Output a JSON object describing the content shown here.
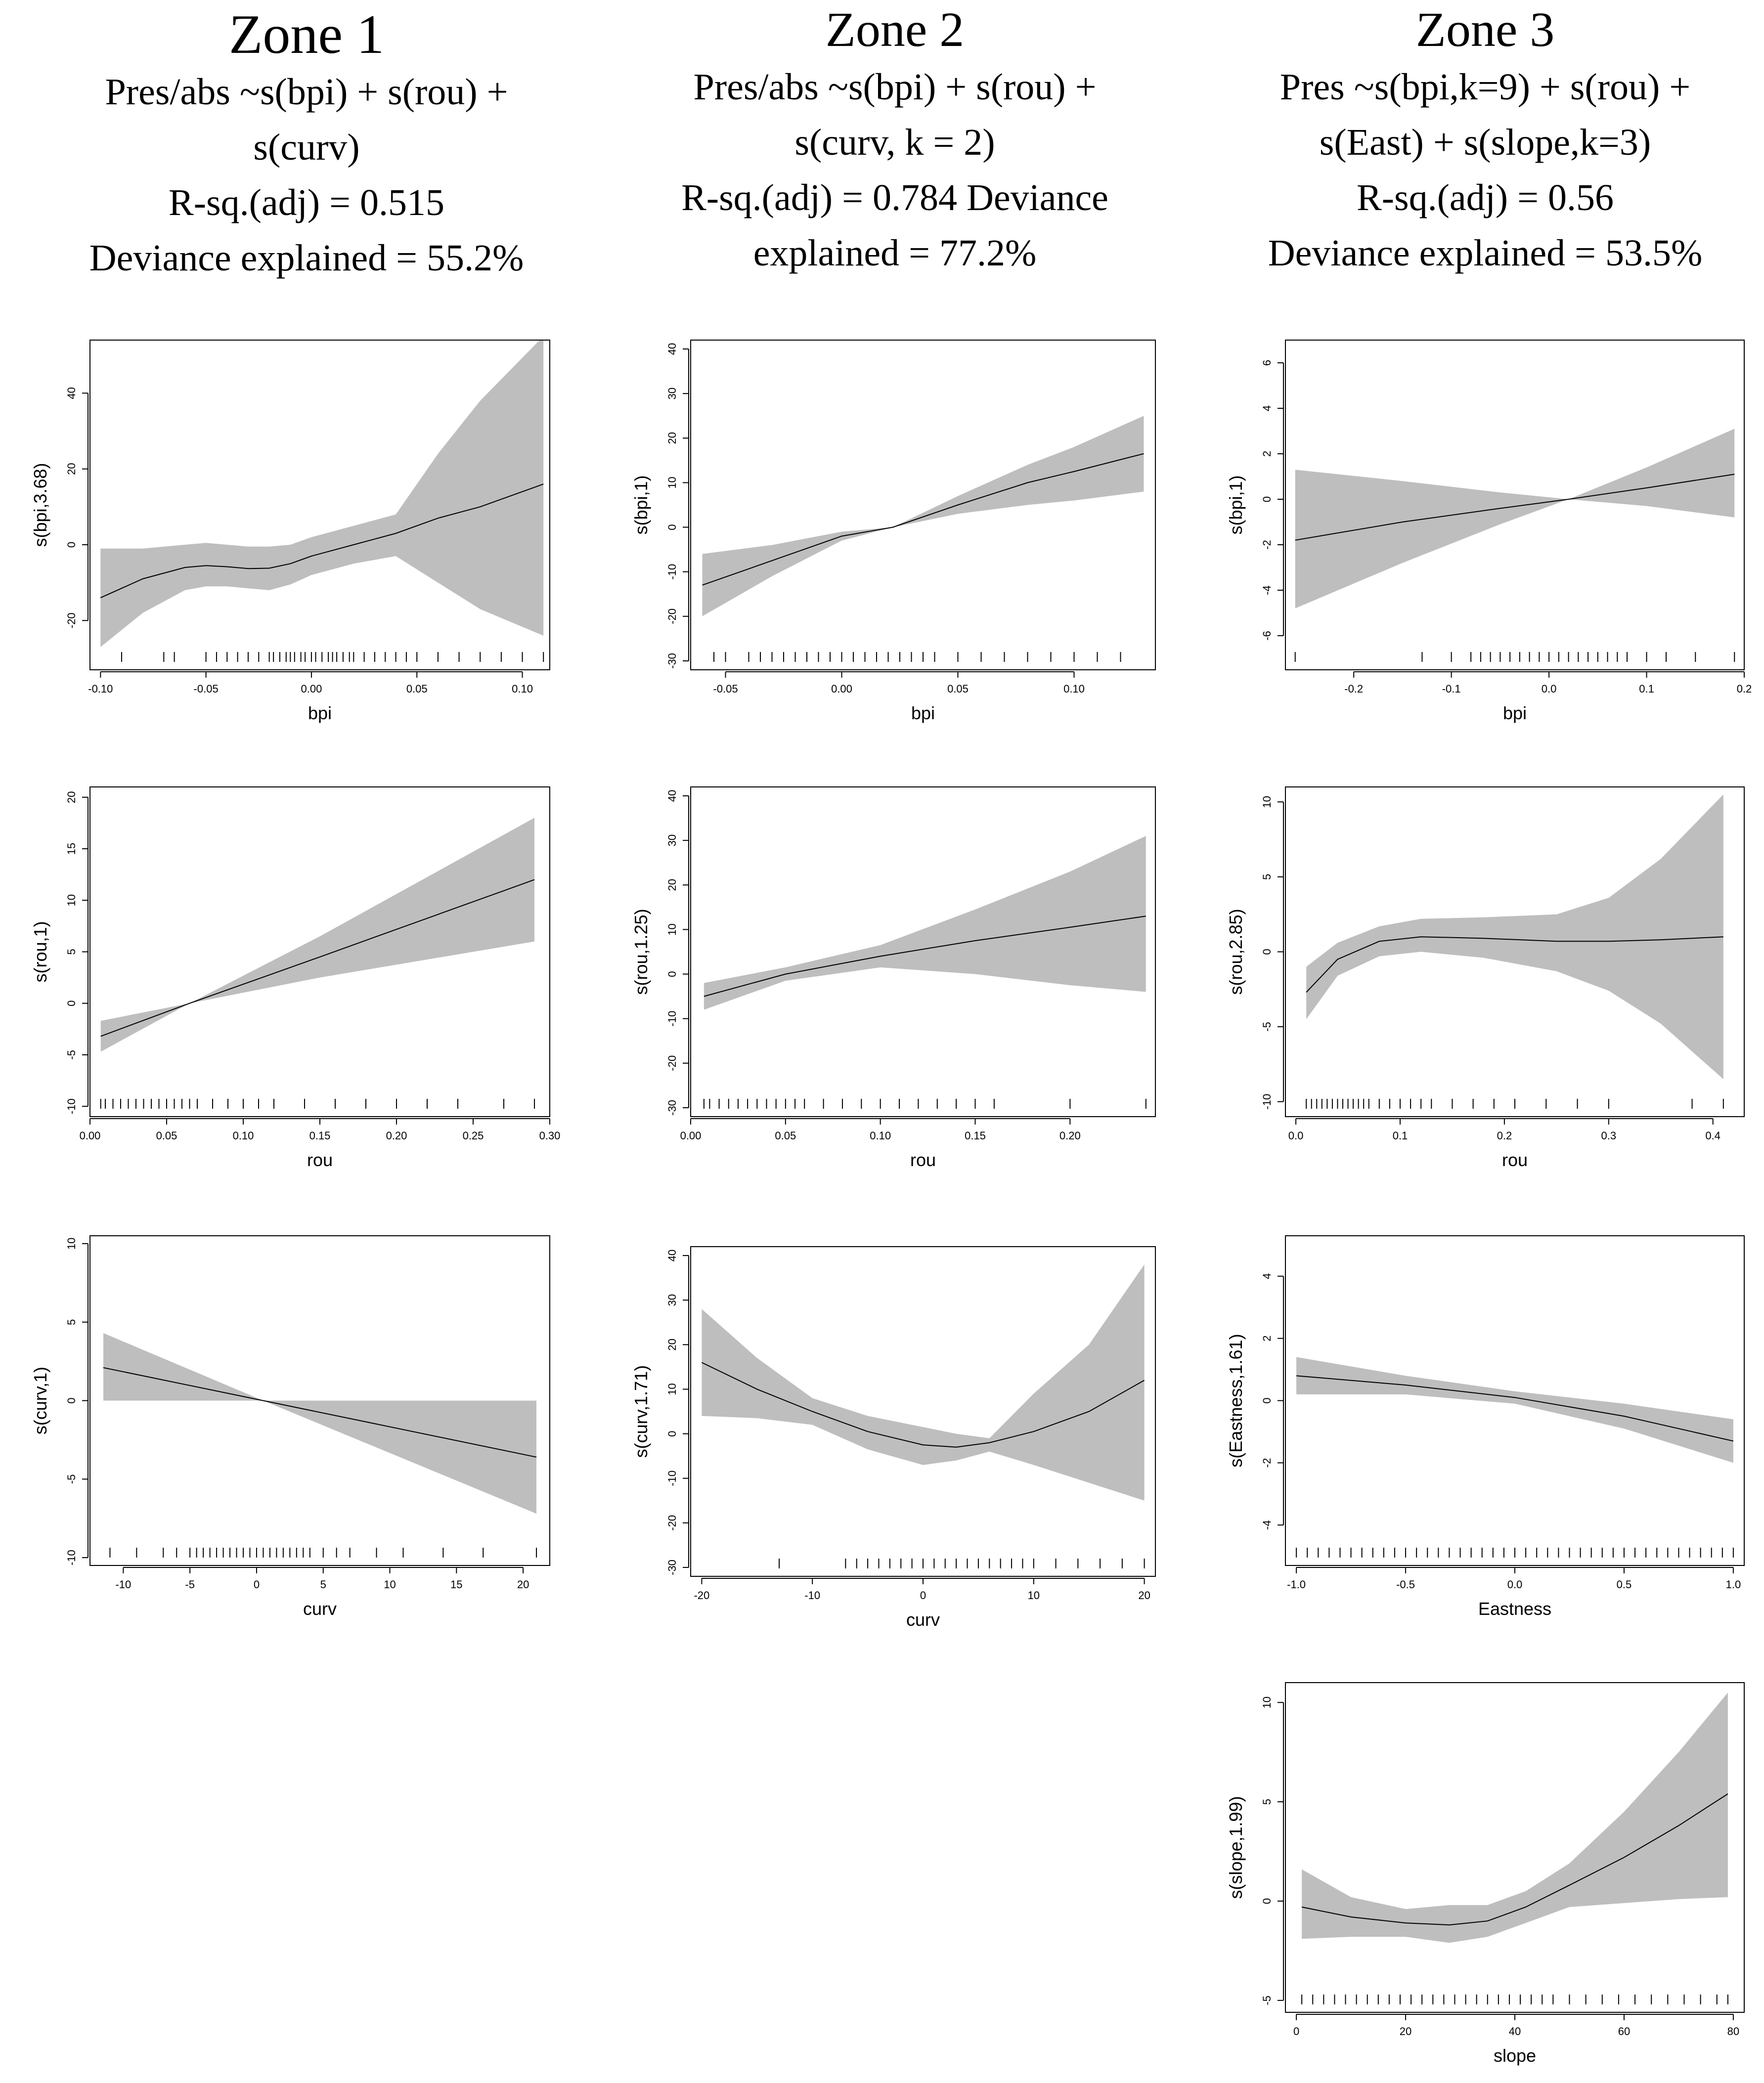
{
  "headers": [
    {
      "zone": "Zone 1",
      "lines": [
        "Pres/abs ~s(bpi) + s(rou) +",
        "s(curv)",
        "R-sq.(adj) = 0.515",
        "Deviance explained = 55.2%"
      ]
    },
    {
      "zone": "Zone 2",
      "lines": [
        "Pres/abs ~s(bpi) + s(rou) +",
        "s(curv, k = 2)",
        "R-sq.(adj) = 0.784 Deviance",
        "explained = 77.2%"
      ]
    },
    {
      "zone": "Zone 3",
      "lines": [
        "Pres ~s(bpi,k=9) + s(rou) +",
        "s(East) + s(slope,k=3)",
        "R-sq.(adj) = 0.56",
        "Deviance explained = 53.5%"
      ]
    }
  ],
  "colors": {
    "band": "#bebebe",
    "line": "#000000",
    "axis": "#000000"
  },
  "chart_data": [
    {
      "id": "z1-bpi",
      "type": "line",
      "xlabel": "bpi",
      "ylabel": "s(bpi,3.68)",
      "xlim": [
        -0.105,
        0.113
      ],
      "ylim": [
        -33,
        54
      ],
      "xticks": [
        -0.1,
        -0.05,
        0.0,
        0.05,
        0.1
      ],
      "xtick_labels": [
        "-0.10",
        "-0.05",
        "0.00",
        "0.05",
        "0.10"
      ],
      "yticks": [
        -20,
        0,
        20,
        40
      ],
      "ytick_labels": [
        "-20",
        "0",
        "20",
        "40"
      ],
      "x": [
        -0.1,
        -0.08,
        -0.06,
        -0.05,
        -0.04,
        -0.03,
        -0.02,
        -0.01,
        0.0,
        0.02,
        0.04,
        0.06,
        0.08,
        0.11
      ],
      "fit": [
        -14,
        -9,
        -6,
        -5.5,
        -5.8,
        -6.3,
        -6.2,
        -5,
        -3,
        0,
        3,
        7,
        10,
        16
      ],
      "lower": [
        -27,
        -18,
        -12,
        -11,
        -11,
        -11.5,
        -12,
        -10.5,
        -8,
        -5,
        -3,
        -10,
        -17,
        -24
      ],
      "upper": [
        -1,
        -1,
        0,
        0.5,
        0,
        -0.5,
        -0.5,
        0,
        2,
        5,
        8,
        24,
        38,
        55
      ],
      "rug": [
        -0.09,
        -0.07,
        -0.065,
        -0.05,
        -0.045,
        -0.04,
        -0.035,
        -0.03,
        -0.025,
        -0.02,
        -0.018,
        -0.015,
        -0.012,
        -0.01,
        -0.008,
        -0.005,
        -0.003,
        0.0,
        0.002,
        0.005,
        0.008,
        0.01,
        0.012,
        0.015,
        0.018,
        0.02,
        0.025,
        0.03,
        0.035,
        0.04,
        0.045,
        0.05,
        0.06,
        0.07,
        0.08,
        0.09,
        0.1,
        0.11
      ]
    },
    {
      "id": "z2-bpi",
      "type": "line",
      "xlabel": "bpi",
      "ylabel": "s(bpi,1)",
      "xlim": [
        -0.065,
        0.135
      ],
      "ylim": [
        -32,
        42
      ],
      "xticks": [
        -0.05,
        0.0,
        0.05,
        0.1
      ],
      "xtick_labels": [
        "-0.05",
        "0.00",
        "0.05",
        "0.10"
      ],
      "yticks": [
        -30,
        -20,
        -10,
        0,
        10,
        20,
        30,
        40
      ],
      "ytick_labels": [
        "-30",
        "-20",
        "-10",
        "0",
        "10",
        "20",
        "30",
        "40"
      ],
      "x": [
        -0.06,
        -0.03,
        0.0,
        0.022,
        0.05,
        0.08,
        0.1,
        0.13
      ],
      "fit": [
        -13,
        -7.5,
        -2,
        0,
        5,
        10,
        12.5,
        16.5
      ],
      "lower": [
        -20,
        -11,
        -3,
        0,
        3,
        5,
        6,
        8
      ],
      "upper": [
        -6,
        -4,
        -1,
        0,
        7,
        14,
        18,
        25
      ],
      "rug": [
        -0.055,
        -0.05,
        -0.04,
        -0.035,
        -0.03,
        -0.025,
        -0.02,
        -0.015,
        -0.01,
        -0.005,
        0.0,
        0.005,
        0.01,
        0.015,
        0.02,
        0.025,
        0.03,
        0.035,
        0.04,
        0.05,
        0.06,
        0.07,
        0.08,
        0.09,
        0.1,
        0.11,
        0.12
      ]
    },
    {
      "id": "z3-bpi",
      "type": "line",
      "xlabel": "bpi",
      "ylabel": "s(bpi,1)",
      "xlim": [
        -0.27,
        0.2
      ],
      "ylim": [
        -7.5,
        7
      ],
      "xticks": [
        -0.2,
        -0.1,
        0.0,
        0.1,
        0.2
      ],
      "xtick_labels": [
        "-0.2",
        "-0.1",
        "0.0",
        "0.1",
        "0.2"
      ],
      "yticks": [
        -6,
        -4,
        -2,
        0,
        2,
        4,
        6
      ],
      "ytick_labels": [
        "-6",
        "-4",
        "-2",
        "0",
        "2",
        "4",
        "6"
      ],
      "x": [
        -0.26,
        -0.15,
        -0.05,
        0.02,
        0.1,
        0.19
      ],
      "fit": [
        -1.8,
        -1.0,
        -0.4,
        0,
        0.5,
        1.1
      ],
      "lower": [
        -4.8,
        -2.8,
        -1.1,
        0,
        -0.3,
        -0.8
      ],
      "upper": [
        1.3,
        0.8,
        0.3,
        0,
        1.4,
        3.1
      ],
      "rug": [
        -0.26,
        -0.13,
        -0.1,
        -0.08,
        -0.07,
        -0.06,
        -0.05,
        -0.04,
        -0.03,
        -0.02,
        -0.01,
        0.0,
        0.01,
        0.02,
        0.03,
        0.04,
        0.05,
        0.06,
        0.07,
        0.08,
        0.1,
        0.12,
        0.15,
        0.19
      ]
    },
    {
      "id": "z1-rou",
      "type": "line",
      "xlabel": "rou",
      "ylabel": "s(rou,1)",
      "xlim": [
        0.0,
        0.3
      ],
      "ylim": [
        -11,
        21
      ],
      "xticks": [
        0.0,
        0.05,
        0.1,
        0.15,
        0.2,
        0.25,
        0.3
      ],
      "xtick_labels": [
        "0.00",
        "0.05",
        "0.10",
        "0.15",
        "0.20",
        "0.25",
        "0.30"
      ],
      "yticks": [
        -10,
        -5,
        0,
        5,
        10,
        15,
        20
      ],
      "ytick_labels": [
        "-10",
        "-5",
        "0",
        "5",
        "10",
        "15",
        "20"
      ],
      "x": [
        0.007,
        0.065,
        0.15,
        0.29
      ],
      "fit": [
        -3.2,
        0,
        4.5,
        12
      ],
      "lower": [
        -4.7,
        0,
        2.5,
        6
      ],
      "upper": [
        -1.7,
        0,
        6.5,
        18
      ],
      "rug": [
        0.007,
        0.01,
        0.015,
        0.02,
        0.025,
        0.03,
        0.035,
        0.04,
        0.045,
        0.05,
        0.055,
        0.06,
        0.065,
        0.07,
        0.08,
        0.09,
        0.1,
        0.11,
        0.12,
        0.14,
        0.16,
        0.18,
        0.2,
        0.22,
        0.24,
        0.27,
        0.29
      ]
    },
    {
      "id": "z2-rou",
      "type": "line",
      "xlabel": "rou",
      "ylabel": "s(rou,1.25)",
      "xlim": [
        0.0,
        0.245
      ],
      "ylim": [
        -32,
        42
      ],
      "xticks": [
        0.0,
        0.05,
        0.1,
        0.15,
        0.2
      ],
      "xtick_labels": [
        "0.00",
        "0.05",
        "0.10",
        "0.15",
        "0.20"
      ],
      "yticks": [
        -30,
        -20,
        -10,
        0,
        10,
        20,
        30,
        40
      ],
      "ytick_labels": [
        "-30",
        "-20",
        "-10",
        "0",
        "10",
        "20",
        "30",
        "40"
      ],
      "x": [
        0.007,
        0.05,
        0.1,
        0.15,
        0.2,
        0.24
      ],
      "fit": [
        -5,
        0,
        4,
        7.5,
        10.5,
        13
      ],
      "lower": [
        -8,
        -1.5,
        1.5,
        0,
        -2.5,
        -4
      ],
      "upper": [
        -2,
        1.5,
        6.5,
        14.5,
        23,
        31
      ],
      "rug": [
        0.007,
        0.01,
        0.015,
        0.02,
        0.025,
        0.03,
        0.035,
        0.04,
        0.045,
        0.05,
        0.055,
        0.06,
        0.07,
        0.08,
        0.09,
        0.1,
        0.11,
        0.12,
        0.13,
        0.14,
        0.15,
        0.16,
        0.2,
        0.24
      ]
    },
    {
      "id": "z3-rou",
      "type": "line",
      "xlabel": "rou",
      "ylabel": "s(rou,2.85)",
      "xlim": [
        -0.01,
        0.43
      ],
      "ylim": [
        -11,
        11
      ],
      "xticks": [
        0.0,
        0.1,
        0.2,
        0.3,
        0.4
      ],
      "xtick_labels": [
        "0.0",
        "0.1",
        "0.2",
        "0.3",
        "0.4"
      ],
      "yticks": [
        -10,
        -5,
        0,
        5,
        10
      ],
      "ytick_labels": [
        "-10",
        "-5",
        "0",
        "5",
        "10"
      ],
      "x": [
        0.01,
        0.04,
        0.08,
        0.12,
        0.18,
        0.25,
        0.3,
        0.35,
        0.41
      ],
      "fit": [
        -2.7,
        -0.5,
        0.7,
        1,
        0.9,
        0.7,
        0.7,
        0.8,
        1
      ],
      "lower": [
        -4.5,
        -1.6,
        -0.3,
        0,
        -0.4,
        -1.3,
        -2.6,
        -4.8,
        -8.5
      ],
      "upper": [
        -1,
        0.6,
        1.7,
        2.2,
        2.3,
        2.5,
        3.6,
        6.2,
        10.5
      ],
      "rug": [
        0.01,
        0.015,
        0.02,
        0.025,
        0.03,
        0.035,
        0.04,
        0.045,
        0.05,
        0.055,
        0.06,
        0.065,
        0.07,
        0.08,
        0.09,
        0.1,
        0.11,
        0.12,
        0.13,
        0.15,
        0.17,
        0.19,
        0.21,
        0.24,
        0.27,
        0.3,
        0.38,
        0.41
      ]
    },
    {
      "id": "z1-curv",
      "type": "line",
      "xlabel": "curv",
      "ylabel": "s(curv,1)",
      "xlim": [
        -12.5,
        22
      ],
      "ylim": [
        -10.5,
        10.5
      ],
      "xticks": [
        -10,
        -5,
        0,
        5,
        10,
        15,
        20
      ],
      "xtick_labels": [
        "-10",
        "-5",
        "0",
        "5",
        "10",
        "15",
        "20"
      ],
      "yticks": [
        -10,
        -5,
        0,
        5,
        10
      ],
      "ytick_labels": [
        "-10",
        "-5",
        "0",
        "5",
        "10"
      ],
      "x": [
        -11.5,
        0.5,
        21
      ],
      "fit": [
        2.1,
        0,
        -3.6
      ],
      "lower": [
        0,
        0,
        -7.2
      ],
      "upper": [
        4.3,
        0,
        0
      ],
      "rug": [
        -11,
        -9,
        -7,
        -6,
        -5,
        -4.5,
        -4,
        -3.5,
        -3,
        -2.5,
        -2,
        -1.5,
        -1,
        -0.5,
        0,
        0.5,
        1,
        1.5,
        2,
        2.5,
        3,
        3.5,
        4,
        5,
        6,
        7,
        9,
        11,
        14,
        17,
        21
      ]
    },
    {
      "id": "z2-curv",
      "type": "line",
      "xlabel": "curv",
      "ylabel": "s(curv,1.71)",
      "xlim": [
        -21,
        21
      ],
      "ylim": [
        -32,
        42
      ],
      "xticks": [
        -20,
        -10,
        0,
        10,
        20
      ],
      "xtick_labels": [
        "-20",
        "-10",
        "0",
        "10",
        "20"
      ],
      "yticks": [
        -30,
        -20,
        -10,
        0,
        10,
        20,
        30,
        40
      ],
      "ytick_labels": [
        "-30",
        "-20",
        "-10",
        "0",
        "10",
        "20",
        "30",
        "40"
      ],
      "x": [
        -20,
        -15,
        -10,
        -5,
        0,
        3,
        6,
        10,
        15,
        20
      ],
      "fit": [
        16,
        10,
        5,
        0.5,
        -2.5,
        -3,
        -2,
        0.5,
        5,
        12
      ],
      "lower": [
        4,
        3.5,
        2,
        -3.5,
        -7,
        -6,
        -4,
        -7,
        -11,
        -15
      ],
      "upper": [
        28,
        17,
        8,
        4,
        1.5,
        0,
        -1,
        9,
        20,
        38
      ],
      "rug": [
        -13,
        -7,
        -6,
        -5,
        -4,
        -3,
        -2,
        -1,
        0,
        1,
        2,
        3,
        4,
        5,
        6,
        7,
        8,
        9,
        10,
        12,
        14,
        16,
        18,
        20
      ]
    },
    {
      "id": "z3-east",
      "type": "line",
      "xlabel": "Eastness",
      "ylabel": "s(Eastness,1.61)",
      "xlim": [
        -1.05,
        1.05
      ],
      "ylim": [
        -5.3,
        5.3
      ],
      "xticks": [
        -1.0,
        -0.5,
        0.0,
        0.5,
        1.0
      ],
      "xtick_labels": [
        "-1.0",
        "-0.5",
        "0.0",
        "0.5",
        "1.0"
      ],
      "yticks": [
        -4,
        -2,
        0,
        2,
        4
      ],
      "ytick_labels": [
        "-4",
        "-2",
        "0",
        "2",
        "4"
      ],
      "x": [
        -1.0,
        -0.5,
        0.0,
        0.5,
        1.0
      ],
      "fit": [
        0.8,
        0.5,
        0.1,
        -0.5,
        -1.3
      ],
      "lower": [
        0.2,
        0.2,
        -0.1,
        -0.9,
        -2.0
      ],
      "upper": [
        1.4,
        0.8,
        0.3,
        -0.1,
        -0.6
      ],
      "rug": [
        -1.0,
        -0.95,
        -0.9,
        -0.85,
        -0.8,
        -0.75,
        -0.7,
        -0.65,
        -0.6,
        -0.55,
        -0.5,
        -0.45,
        -0.4,
        -0.35,
        -0.3,
        -0.25,
        -0.2,
        -0.15,
        -0.1,
        -0.05,
        0.0,
        0.05,
        0.1,
        0.15,
        0.2,
        0.25,
        0.3,
        0.35,
        0.4,
        0.45,
        0.5,
        0.55,
        0.6,
        0.65,
        0.7,
        0.75,
        0.8,
        0.85,
        0.9,
        0.95,
        1.0
      ]
    },
    {
      "id": "z3-slope",
      "type": "line",
      "xlabel": "slope",
      "ylabel": "s(slope,1.99)",
      "xlim": [
        -2,
        82
      ],
      "ylim": [
        -5.6,
        11
      ],
      "xticks": [
        0,
        20,
        40,
        60,
        80
      ],
      "xtick_labels": [
        "0",
        "20",
        "40",
        "60",
        "80"
      ],
      "yticks": [
        -5,
        0,
        5,
        10
      ],
      "ytick_labels": [
        "-5",
        "0",
        "5",
        "10"
      ],
      "x": [
        1,
        10,
        20,
        28,
        35,
        42,
        50,
        60,
        70,
        79
      ],
      "fit": [
        -0.3,
        -0.8,
        -1.1,
        -1.2,
        -1.0,
        -0.3,
        0.8,
        2.2,
        3.8,
        5.4
      ],
      "lower": [
        -1.9,
        -1.8,
        -1.8,
        -2.1,
        -1.8,
        -1.1,
        -0.3,
        -0.1,
        0.1,
        0.2
      ],
      "upper": [
        1.6,
        0.2,
        -0.4,
        -0.2,
        -0.2,
        0.5,
        1.9,
        4.5,
        7.5,
        10.5
      ],
      "rug": [
        1,
        3,
        5,
        7,
        9,
        11,
        13,
        15,
        17,
        19,
        21,
        23,
        25,
        27,
        29,
        31,
        33,
        35,
        37,
        39,
        41,
        43,
        45,
        47,
        50,
        53,
        56,
        59,
        62,
        65,
        68,
        71,
        74,
        77,
        79
      ]
    }
  ]
}
